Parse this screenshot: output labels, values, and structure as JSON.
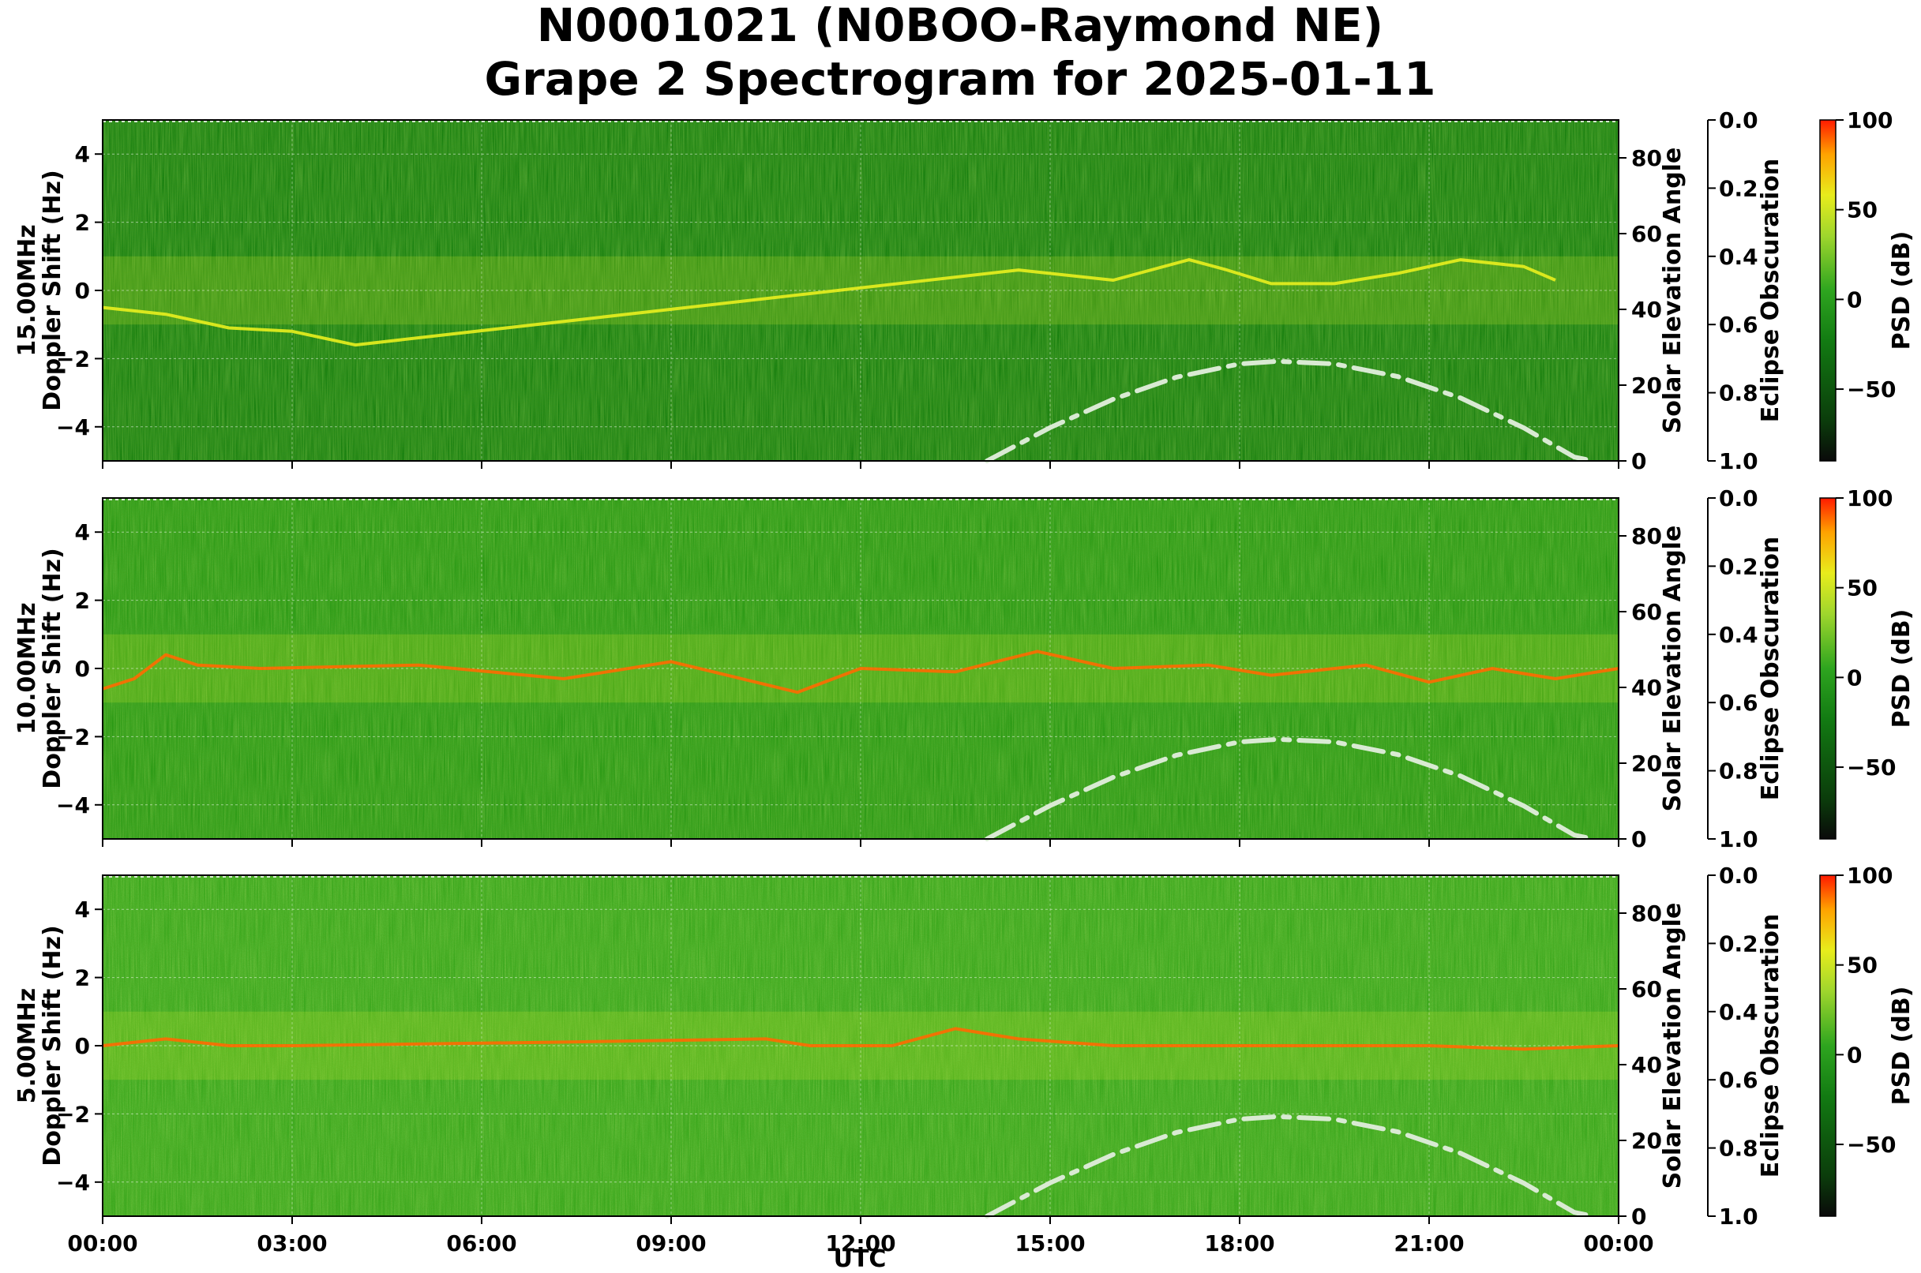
{
  "figure": {
    "title_line1": "N0001021 (N0BOO-Raymond NE)",
    "title_line2": "Grape 2 Spectrogram for 2025-01-11",
    "xlabel": "UTC"
  },
  "colors": {
    "colormap": [
      "#0a0a0a",
      "#0b3d0b",
      "#127a12",
      "#2ea51f",
      "#9fd62d",
      "#e8ec1c",
      "#ffa200",
      "#ff1a00"
    ],
    "solar_curve": "#d9ead3",
    "grid": "#ffffff"
  },
  "chart_data": [
    {
      "type": "heatmap",
      "panel_label": "15.00MHz",
      "ylabel": "Doppler Shift (Hz)",
      "xlim": [
        "00:00",
        "24:00"
      ],
      "ylim": [
        -5,
        5
      ],
      "xticks": [
        "00:00",
        "03:00",
        "06:00",
        "09:00",
        "12:00",
        "15:00",
        "18:00",
        "21:00",
        "00:00"
      ],
      "yticks": [
        -4,
        -2,
        0,
        2,
        4
      ],
      "grid": true,
      "right_axis_1": {
        "label": "Solar Elevation Angle",
        "ylim": [
          0,
          90
        ],
        "ticks": [
          0,
          20,
          40,
          60,
          80
        ]
      },
      "right_axis_2": {
        "label": "Eclipse Obscuration",
        "ylim": [
          1.0,
          0.0
        ],
        "ticks": [
          "0.0",
          "0.2",
          "0.4",
          "0.6",
          "0.8",
          "1.0"
        ]
      },
      "colorbar": {
        "label": "PSD (dB)",
        "range": [
          -90,
          100
        ],
        "ticks": [
          "100",
          "50",
          "0",
          "−50"
        ]
      },
      "solar_elevation_curve": {
        "x_hours": [
          14.0,
          15.0,
          16.0,
          17.0,
          18.0,
          18.6,
          19.5,
          20.5,
          21.5,
          22.5,
          23.3,
          23.6
        ],
        "y_deg": [
          0,
          8.8,
          16.3,
          22.1,
          25.6,
          26.3,
          25.6,
          22.3,
          16.6,
          8.7,
          1.0,
          0
        ]
      },
      "signal_trace": [
        [
          0.0,
          -0.5
        ],
        [
          0.5,
          -0.6
        ],
        [
          1.0,
          -0.7
        ],
        [
          2.0,
          -1.1
        ],
        [
          3.0,
          -1.2
        ],
        [
          4.0,
          -1.6
        ],
        [
          14.5,
          0.6
        ],
        [
          16.0,
          0.3
        ],
        [
          17.2,
          0.9
        ],
        [
          17.8,
          0.6
        ],
        [
          18.5,
          0.2
        ],
        [
          19.5,
          0.2
        ],
        [
          20.5,
          0.5
        ],
        [
          21.5,
          0.9
        ],
        [
          22.5,
          0.7
        ],
        [
          23.0,
          0.3
        ]
      ],
      "trace_level": "moderate",
      "background_level": "low"
    },
    {
      "type": "heatmap",
      "panel_label": "10.00MHz",
      "ylabel": "Doppler Shift (Hz)",
      "xlim": [
        "00:00",
        "24:00"
      ],
      "ylim": [
        -5,
        5
      ],
      "xticks": [
        "00:00",
        "03:00",
        "06:00",
        "09:00",
        "12:00",
        "15:00",
        "18:00",
        "21:00",
        "00:00"
      ],
      "yticks": [
        -4,
        -2,
        0,
        2,
        4
      ],
      "grid": true,
      "right_axis_1": {
        "label": "Solar Elevation Angle",
        "ylim": [
          0,
          90
        ],
        "ticks": [
          0,
          20,
          40,
          60,
          80
        ]
      },
      "right_axis_2": {
        "label": "Eclipse Obscuration",
        "ylim": [
          1.0,
          0.0
        ],
        "ticks": [
          "0.0",
          "0.2",
          "0.4",
          "0.6",
          "0.8",
          "1.0"
        ]
      },
      "colorbar": {
        "label": "PSD (dB)",
        "range": [
          -90,
          100
        ],
        "ticks": [
          "100",
          "50",
          "0",
          "−50"
        ]
      },
      "solar_elevation_curve": {
        "x_hours": [
          14.0,
          15.0,
          16.0,
          17.0,
          18.0,
          18.6,
          19.5,
          20.5,
          21.5,
          22.5,
          23.3,
          23.6
        ],
        "y_deg": [
          0,
          8.8,
          16.3,
          22.1,
          25.6,
          26.3,
          25.6,
          22.3,
          16.6,
          8.7,
          1.0,
          0
        ]
      },
      "signal_trace": [
        [
          0.0,
          -0.6
        ],
        [
          0.5,
          -0.3
        ],
        [
          1.0,
          0.4
        ],
        [
          1.5,
          0.1
        ],
        [
          2.5,
          0.0
        ],
        [
          5.0,
          0.1
        ],
        [
          7.3,
          -0.3
        ],
        [
          9.0,
          0.2
        ],
        [
          11.0,
          -0.7
        ],
        [
          12.0,
          0.0
        ],
        [
          13.5,
          -0.1
        ],
        [
          14.8,
          0.5
        ],
        [
          16.0,
          0.0
        ],
        [
          17.5,
          0.1
        ],
        [
          18.5,
          -0.2
        ],
        [
          20.0,
          0.1
        ],
        [
          21.0,
          -0.4
        ],
        [
          22.0,
          0.0
        ],
        [
          23.0,
          -0.3
        ],
        [
          24.0,
          0.0
        ]
      ],
      "trace_level": "high",
      "background_level": "medium"
    },
    {
      "type": "heatmap",
      "panel_label": "5.00MHz",
      "ylabel": "Doppler Shift (Hz)",
      "xlim": [
        "00:00",
        "24:00"
      ],
      "ylim": [
        -5,
        5
      ],
      "xticks": [
        "00:00",
        "03:00",
        "06:00",
        "09:00",
        "12:00",
        "15:00",
        "18:00",
        "21:00",
        "00:00"
      ],
      "yticks": [
        -4,
        -2,
        0,
        2,
        4
      ],
      "grid": true,
      "right_axis_1": {
        "label": "Solar Elevation Angle",
        "ylim": [
          0,
          90
        ],
        "ticks": [
          0,
          20,
          40,
          60,
          80
        ]
      },
      "right_axis_2": {
        "label": "Eclipse Obscuration",
        "ylim": [
          1.0,
          0.0
        ],
        "ticks": [
          "0.0",
          "0.2",
          "0.4",
          "0.6",
          "0.8",
          "1.0"
        ]
      },
      "colorbar": {
        "label": "PSD (dB)",
        "range": [
          -90,
          100
        ],
        "ticks": [
          "100",
          "50",
          "0",
          "−50"
        ]
      },
      "solar_elevation_curve": {
        "x_hours": [
          14.0,
          15.0,
          16.0,
          17.0,
          18.0,
          18.6,
          19.5,
          20.5,
          21.5,
          22.5,
          23.3,
          23.6
        ],
        "y_deg": [
          0,
          8.8,
          16.3,
          22.1,
          25.6,
          26.3,
          25.6,
          22.3,
          16.6,
          8.7,
          1.0,
          0
        ]
      },
      "signal_trace": [
        [
          0.0,
          0.0
        ],
        [
          1.0,
          0.2
        ],
        [
          2.0,
          0.0
        ],
        [
          3.0,
          0.0
        ],
        [
          7.0,
          0.1
        ],
        [
          10.5,
          0.2
        ],
        [
          11.2,
          0.0
        ],
        [
          12.5,
          0.0
        ],
        [
          13.5,
          0.5
        ],
        [
          14.5,
          0.2
        ],
        [
          16.0,
          0.0
        ],
        [
          21.0,
          0.0
        ],
        [
          22.5,
          -0.1
        ],
        [
          24.0,
          0.0
        ]
      ],
      "trace_level": "high",
      "background_level": "high"
    }
  ]
}
